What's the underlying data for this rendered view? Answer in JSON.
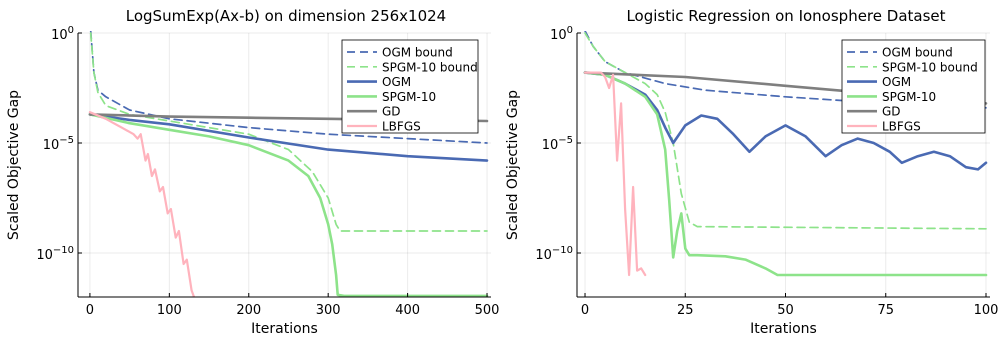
{
  "chart_data": [
    {
      "type": "line",
      "title": "LogSumExp(Ax-b) on dimension 256x1024",
      "xlabel": "Iterations",
      "ylabel": "Scaled Objective Gap",
      "y_scale": "log",
      "xlim": [
        -15,
        505
      ],
      "ylim_log10": [
        -12,
        0
      ],
      "x_ticks": [
        0,
        100,
        200,
        300,
        400,
        500
      ],
      "x_tick_labels": [
        "0",
        "100",
        "200",
        "300",
        "400",
        "500"
      ],
      "y_ticks_log10": [
        0,
        -5,
        -10
      ],
      "y_tick_labels": [
        {
          "base": "10",
          "exp": "0"
        },
        {
          "base": "10",
          "exp": "−5"
        },
        {
          "base": "10",
          "exp": "−10"
        }
      ],
      "grid": true,
      "legend_position": "top-right",
      "series": [
        {
          "name": "OGM bound",
          "color": "#4a6ab3",
          "dash": "8,5",
          "width": 1.7,
          "points": [
            [
              1,
              0.1
            ],
            [
              5,
              -1.8
            ],
            [
              10,
              -2.6
            ],
            [
              20,
              -2.9
            ],
            [
              50,
              -3.5
            ],
            [
              100,
              -3.9
            ],
            [
              200,
              -4.3
            ],
            [
              300,
              -4.6
            ],
            [
              400,
              -4.8
            ],
            [
              500,
              -5.0
            ]
          ]
        },
        {
          "name": "SPGM-10 bound",
          "color": "#8de38a",
          "dash": "8,5",
          "width": 1.7,
          "points": [
            [
              1,
              0.0
            ],
            [
              5,
              -1.8
            ],
            [
              10,
              -2.7
            ],
            [
              20,
              -3.3
            ],
            [
              50,
              -3.7
            ],
            [
              100,
              -4.0
            ],
            [
              150,
              -4.3
            ],
            [
              200,
              -4.6
            ],
            [
              250,
              -5.3
            ],
            [
              280,
              -6.3
            ],
            [
              300,
              -7.5
            ],
            [
              310,
              -8.7
            ],
            [
              315,
              -9.0
            ],
            [
              500,
              -9.0
            ]
          ]
        },
        {
          "name": "OGM",
          "color": "#4a6ab3",
          "dash": "",
          "width": 2.6,
          "points": [
            [
              0,
              -3.7
            ],
            [
              10,
              -3.75
            ],
            [
              50,
              -3.95
            ],
            [
              100,
              -4.15
            ],
            [
              200,
              -4.75
            ],
            [
              300,
              -5.3
            ],
            [
              400,
              -5.6
            ],
            [
              500,
              -5.8
            ]
          ]
        },
        {
          "name": "SPGM-10",
          "color": "#8de38a",
          "dash": "",
          "width": 2.6,
          "points": [
            [
              0,
              -3.7
            ],
            [
              50,
              -4.1
            ],
            [
              100,
              -4.4
            ],
            [
              150,
              -4.7
            ],
            [
              200,
              -5.1
            ],
            [
              250,
              -5.8
            ],
            [
              275,
              -6.5
            ],
            [
              290,
              -7.5
            ],
            [
              300,
              -8.7
            ],
            [
              305,
              -9.6
            ],
            [
              310,
              -11.0
            ],
            [
              312,
              -11.9
            ],
            [
              320,
              -11.95
            ],
            [
              500,
              -11.95
            ]
          ]
        },
        {
          "name": "GD",
          "color": "#7f7f7f",
          "dash": "",
          "width": 2.6,
          "points": [
            [
              0,
              -3.7
            ],
            [
              100,
              -3.8
            ],
            [
              200,
              -3.85
            ],
            [
              300,
              -3.9
            ],
            [
              400,
              -3.95
            ],
            [
              500,
              -4.0
            ]
          ]
        },
        {
          "name": "LBFGS",
          "color": "#ffb3bd",
          "dash": "",
          "width": 2.2,
          "points": [
            [
              0,
              -3.6
            ],
            [
              20,
              -3.9
            ],
            [
              40,
              -4.3
            ],
            [
              55,
              -4.6
            ],
            [
              60,
              -4.8
            ],
            [
              64,
              -4.6
            ],
            [
              70,
              -5.8
            ],
            [
              73,
              -5.5
            ],
            [
              78,
              -6.5
            ],
            [
              82,
              -6.2
            ],
            [
              88,
              -7.2
            ],
            [
              92,
              -7.0
            ],
            [
              98,
              -8.2
            ],
            [
              102,
              -8.0
            ],
            [
              108,
              -9.3
            ],
            [
              112,
              -9.0
            ],
            [
              118,
              -10.5
            ],
            [
              122,
              -10.3
            ],
            [
              128,
              -11.7
            ],
            [
              131,
              -12.0
            ]
          ]
        }
      ]
    },
    {
      "type": "line",
      "title": "Logistic Regression on Ionosphere Dataset",
      "xlabel": "Iterations",
      "ylabel": "Scaled Objective Gap",
      "y_scale": "log",
      "xlim": [
        -2,
        101
      ],
      "ylim_log10": [
        -12,
        0
      ],
      "x_ticks": [
        0,
        25,
        50,
        75,
        100
      ],
      "x_tick_labels": [
        "0",
        "25",
        "50",
        "75",
        "100"
      ],
      "y_ticks_log10": [
        0,
        -5,
        -10
      ],
      "y_tick_labels": [
        {
          "base": "10",
          "exp": "0"
        },
        {
          "base": "10",
          "exp": "−5"
        },
        {
          "base": "10",
          "exp": "−10"
        }
      ],
      "grid": true,
      "legend_position": "top-right",
      "series": [
        {
          "name": "OGM bound",
          "color": "#4a6ab3",
          "dash": "8,5",
          "width": 1.7,
          "points": [
            [
              0,
              0.1
            ],
            [
              2,
              -0.6
            ],
            [
              5,
              -1.3
            ],
            [
              10,
              -1.8
            ],
            [
              20,
              -2.3
            ],
            [
              30,
              -2.6
            ],
            [
              50,
              -2.9
            ],
            [
              75,
              -3.2
            ],
            [
              100,
              -3.4
            ]
          ]
        },
        {
          "name": "SPGM-10 bound",
          "color": "#8de38a",
          "dash": "8,5",
          "width": 1.7,
          "points": [
            [
              0,
              0.0
            ],
            [
              2,
              -0.6
            ],
            [
              5,
              -1.3
            ],
            [
              10,
              -1.8
            ],
            [
              15,
              -2.3
            ],
            [
              18,
              -2.8
            ],
            [
              20,
              -3.6
            ],
            [
              22,
              -5.0
            ],
            [
              24,
              -7.3
            ],
            [
              26,
              -8.6
            ],
            [
              28,
              -8.8
            ],
            [
              100,
              -8.9
            ]
          ]
        },
        {
          "name": "OGM",
          "color": "#4a6ab3",
          "dash": "",
          "width": 2.6,
          "points": [
            [
              0,
              -1.8
            ],
            [
              5,
              -1.9
            ],
            [
              10,
              -2.3
            ],
            [
              15,
              -2.8
            ],
            [
              18,
              -3.5
            ],
            [
              20,
              -4.3
            ],
            [
              22,
              -5.0
            ],
            [
              25,
              -4.2
            ],
            [
              29,
              -3.75
            ],
            [
              33,
              -3.9
            ],
            [
              37,
              -4.6
            ],
            [
              41,
              -5.4
            ],
            [
              45,
              -4.7
            ],
            [
              50,
              -4.2
            ],
            [
              55,
              -4.7
            ],
            [
              60,
              -5.6
            ],
            [
              64,
              -5.1
            ],
            [
              68,
              -4.8
            ],
            [
              72,
              -5.0
            ],
            [
              76,
              -5.4
            ],
            [
              79,
              -5.9
            ],
            [
              83,
              -5.6
            ],
            [
              87,
              -5.4
            ],
            [
              91,
              -5.6
            ],
            [
              95,
              -6.1
            ],
            [
              98,
              -6.2
            ],
            [
              100,
              -5.9
            ]
          ]
        },
        {
          "name": "SPGM-10",
          "color": "#8de38a",
          "dash": "",
          "width": 2.6,
          "points": [
            [
              0,
              -1.8
            ],
            [
              5,
              -1.9
            ],
            [
              10,
              -2.3
            ],
            [
              15,
              -2.9
            ],
            [
              18,
              -3.7
            ],
            [
              20,
              -5.3
            ],
            [
              21,
              -7.6
            ],
            [
              22,
              -10.2
            ],
            [
              23,
              -9.0
            ],
            [
              24,
              -8.2
            ],
            [
              25,
              -9.8
            ],
            [
              26,
              -10.1
            ],
            [
              28,
              -10.1
            ],
            [
              35,
              -10.15
            ],
            [
              40,
              -10.3
            ],
            [
              45,
              -10.7
            ],
            [
              48,
              -11.0
            ],
            [
              60,
              -11.0
            ],
            [
              100,
              -11.0
            ]
          ]
        },
        {
          "name": "GD",
          "color": "#7f7f7f",
          "dash": "",
          "width": 2.6,
          "points": [
            [
              0,
              -1.8
            ],
            [
              25,
              -2.0
            ],
            [
              50,
              -2.4
            ],
            [
              75,
              -2.8
            ],
            [
              100,
              -3.2
            ]
          ]
        },
        {
          "name": "LBFGS",
          "color": "#ffb3bd",
          "dash": "",
          "width": 2.2,
          "points": [
            [
              0,
              -1.8
            ],
            [
              4,
              -1.8
            ],
            [
              5,
              -2.0
            ],
            [
              6,
              -2.5
            ],
            [
              7,
              -1.9
            ],
            [
              8,
              -5.8
            ],
            [
              9,
              -3.2
            ],
            [
              10,
              -8.0
            ],
            [
              11,
              -11.0
            ],
            [
              12,
              -7.0
            ],
            [
              13,
              -10.8
            ],
            [
              14,
              -10.7
            ],
            [
              15,
              -11.0
            ]
          ]
        }
      ]
    }
  ]
}
